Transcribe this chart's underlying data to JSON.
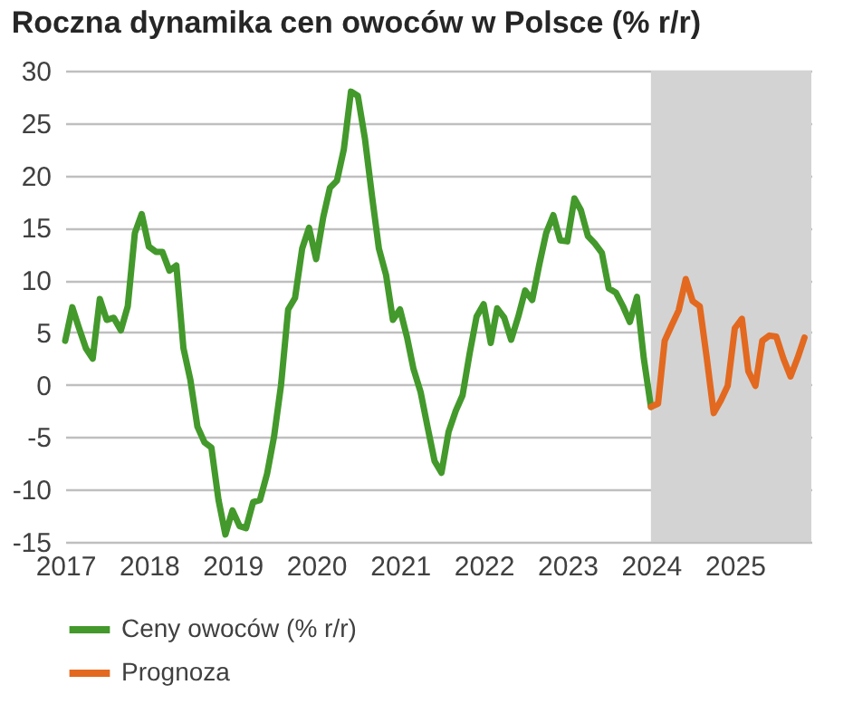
{
  "chart_data": {
    "type": "line",
    "title": "Roczna dynamika cen owoców w Polsce (% r/r)",
    "xlim": [
      "2017-01",
      "2025-12"
    ],
    "xticks": [
      {
        "value": "2017-01",
        "label": "2017"
      },
      {
        "value": "2018-01",
        "label": "2018"
      },
      {
        "value": "2019-01",
        "label": "2019"
      },
      {
        "value": "2020-01",
        "label": "2020"
      },
      {
        "value": "2021-01",
        "label": "2021"
      },
      {
        "value": "2022-01",
        "label": "2022"
      },
      {
        "value": "2023-01",
        "label": "2023"
      },
      {
        "value": "2024-01",
        "label": "2024"
      },
      {
        "value": "2025-01",
        "label": "2025"
      }
    ],
    "ylim": [
      -15,
      30
    ],
    "yticks": [
      -15,
      -10,
      -5,
      0,
      5,
      10,
      15,
      20,
      25,
      30
    ],
    "grid": "y",
    "legend": "bottom",
    "line_style": "solid",
    "bands": [
      {
        "axis": "x",
        "from": "2024-01",
        "to": "2025-12",
        "color": "#d3d3d3"
      }
    ],
    "series": [
      {
        "name": "Ceny owoców (% r/r)",
        "color": "#43992b",
        "x": [
          "2017-01",
          "2017-02",
          "2017-03",
          "2017-04",
          "2017-05",
          "2017-06",
          "2017-07",
          "2017-08",
          "2017-09",
          "2017-10",
          "2017-11",
          "2017-12",
          "2018-01",
          "2018-02",
          "2018-03",
          "2018-04",
          "2018-05",
          "2018-06",
          "2018-07",
          "2018-08",
          "2018-09",
          "2018-10",
          "2018-11",
          "2018-12",
          "2019-01",
          "2019-02",
          "2019-03",
          "2019-04",
          "2019-05",
          "2019-06",
          "2019-07",
          "2019-08",
          "2019-09",
          "2019-10",
          "2019-11",
          "2019-12",
          "2020-01",
          "2020-02",
          "2020-03",
          "2020-04",
          "2020-05",
          "2020-06",
          "2020-07",
          "2020-08",
          "2020-09",
          "2020-10",
          "2020-11",
          "2020-12",
          "2021-01",
          "2021-02",
          "2021-03",
          "2021-04",
          "2021-05",
          "2021-06",
          "2021-07",
          "2021-08",
          "2021-09",
          "2021-10",
          "2021-11",
          "2021-12",
          "2022-01",
          "2022-02",
          "2022-03",
          "2022-04",
          "2022-05",
          "2022-06",
          "2022-07",
          "2022-08",
          "2022-09",
          "2022-10",
          "2022-11",
          "2022-12",
          "2023-01",
          "2023-02",
          "2023-03",
          "2023-04",
          "2023-05",
          "2023-06",
          "2023-07",
          "2023-08",
          "2023-09",
          "2023-10",
          "2023-11",
          "2023-12",
          "2024-01"
        ],
        "values": [
          4.2,
          7.4,
          5.5,
          3.5,
          2.5,
          8.2,
          6.2,
          6.4,
          5.2,
          7.5,
          14.5,
          16.3,
          13.2,
          12.7,
          12.7,
          10.9,
          11.4,
          3.5,
          0.5,
          -4,
          -5.5,
          -6,
          -11,
          -14.3,
          -12,
          -13.5,
          -13.7,
          -11.2,
          -11,
          -8.5,
          -5,
          0,
          7.2,
          8.3,
          13,
          15,
          12,
          16,
          18.8,
          19.5,
          22.5,
          28,
          27.6,
          23.5,
          18,
          13,
          10.5,
          6.2,
          7.2,
          4.5,
          1.5,
          -0.7,
          -4,
          -7.3,
          -8.4,
          -4.5,
          -2.5,
          -1,
          3,
          6.5,
          7.7,
          4,
          7.3,
          6.4,
          4.3,
          6.5,
          9,
          8.1,
          11.5,
          14.5,
          16.2,
          13.8,
          13.7,
          17.8,
          16.7,
          14.2,
          13.5,
          12.6,
          9.2,
          8.8,
          7.5,
          6,
          8.4,
          2.5,
          -2.1
        ]
      },
      {
        "name": "Prognoza",
        "color": "#e2691f",
        "x": [
          "2024-01",
          "2024-02",
          "2024-03",
          "2024-04",
          "2024-05",
          "2024-06",
          "2024-07",
          "2024-08",
          "2024-09",
          "2024-10",
          "2024-11",
          "2024-12",
          "2025-01",
          "2025-02",
          "2025-03",
          "2025-04",
          "2025-05",
          "2025-06",
          "2025-07",
          "2025-08",
          "2025-09",
          "2025-10",
          "2025-11"
        ],
        "values": [
          -2.1,
          -1.8,
          4.2,
          5.7,
          7.1,
          10.1,
          8,
          7.5,
          2.5,
          -2.7,
          -1.5,
          -0.1,
          5.4,
          6.3,
          1.3,
          -0.1,
          4.2,
          4.7,
          4.6,
          2.5,
          0.8,
          2.5,
          4.5
        ]
      }
    ]
  }
}
